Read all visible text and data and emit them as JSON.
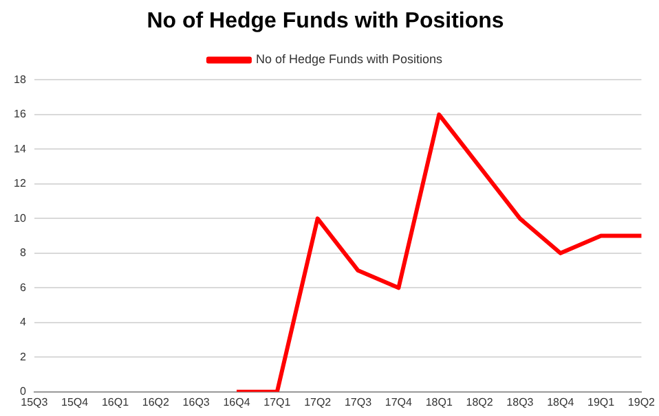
{
  "chart_data": {
    "type": "line",
    "title": "No of Hedge Funds with Positions",
    "categories": [
      "15Q3",
      "15Q4",
      "16Q1",
      "16Q2",
      "16Q3",
      "16Q4",
      "17Q1",
      "17Q2",
      "17Q3",
      "17Q4",
      "18Q1",
      "18Q2",
      "18Q3",
      "18Q4",
      "19Q1",
      "19Q2"
    ],
    "series": [
      {
        "name": "No of Hedge Funds with Positions",
        "color": "#ff0000",
        "values": [
          null,
          null,
          null,
          null,
          null,
          0,
          0,
          10,
          7,
          6,
          16,
          13,
          10,
          8,
          9,
          9
        ]
      }
    ],
    "ylim": [
      0,
      18
    ],
    "yticks": [
      0,
      2,
      4,
      6,
      8,
      10,
      12,
      14,
      16,
      18
    ],
    "grid": "y",
    "legend": "top",
    "marker": "none",
    "line_style": "solid"
  }
}
